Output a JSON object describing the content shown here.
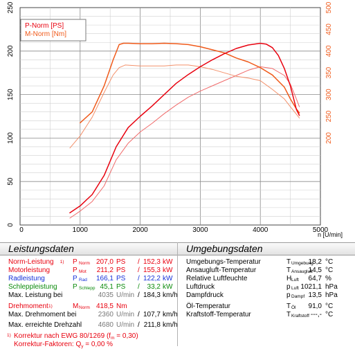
{
  "chart_data": {
    "type": "line",
    "x_axis": {
      "label": "n [U/min]",
      "range": [
        0,
        5000
      ],
      "ticks": [
        0,
        1000,
        2000,
        3000,
        4000,
        5000
      ]
    },
    "y_left": {
      "range": [
        0,
        250
      ],
      "ticks": [
        0,
        50,
        100,
        150,
        200,
        250
      ]
    },
    "y_right": {
      "range": [
        0,
        500
      ],
      "ticks": [
        200,
        250,
        300,
        350,
        400,
        450,
        500
      ]
    },
    "grid": true,
    "legend": {
      "position": "top-left",
      "entries": [
        "P-Norm [PS]",
        "M-Norm [Nm]"
      ]
    },
    "colors": {
      "power": "#e8000e",
      "torque": "#f05a1a",
      "power_light": "#f06a6a",
      "torque_light": "#f3906a"
    },
    "series": [
      {
        "name": "P-Norm [PS]",
        "axis": "left",
        "x": [
          830,
          1000,
          1200,
          1400,
          1600,
          1800,
          2000,
          2200,
          2400,
          2600,
          2800,
          3000,
          3200,
          3400,
          3600,
          3800,
          4000,
          4100,
          4200,
          4300,
          4400,
          4500,
          4600,
          4650
        ],
        "y": [
          14,
          22,
          35,
          57,
          90,
          112,
          125,
          137,
          150,
          163,
          173,
          182,
          190,
          197,
          203,
          207,
          209,
          208,
          204,
          195,
          180,
          160,
          133,
          126
        ]
      },
      {
        "name": "M-Norm [Nm]",
        "axis": "right",
        "x": [
          1000,
          1200,
          1400,
          1550,
          1650,
          1720,
          1800,
          2000,
          2200,
          2400,
          2600,
          2800,
          3000,
          3200,
          3400,
          3600,
          3800,
          4000,
          4200,
          4400,
          4500,
          4600,
          4650
        ],
        "y": [
          235,
          260,
          320,
          380,
          415,
          418,
          418,
          417,
          417,
          418,
          417,
          415,
          410,
          403,
          396,
          384,
          375,
          362,
          345,
          317,
          290,
          267,
          258
        ]
      },
      {
        "axis": "left",
        "x": [
          830,
          1000,
          1200,
          1400,
          1600,
          1800,
          2000,
          2200,
          2400,
          2600,
          2800,
          3000,
          3200,
          3400,
          3600,
          3800,
          4000,
          4200,
          4400,
          4500,
          4600,
          4650
        ],
        "y": [
          8,
          16,
          27,
          45,
          75,
          94,
          107,
          117,
          128,
          138,
          147,
          154,
          160,
          166,
          172,
          178,
          182,
          180,
          172,
          162,
          145,
          136
        ]
      },
      {
        "axis": "right",
        "x": [
          830,
          1000,
          1200,
          1400,
          1550,
          1650,
          1750,
          2000,
          2200,
          2400,
          2600,
          2800,
          3000,
          3200,
          3400,
          3600,
          3800,
          4000,
          4200,
          4400,
          4500,
          4600,
          4650
        ],
        "y": [
          177,
          205,
          248,
          305,
          345,
          362,
          368,
          366,
          366,
          366,
          368,
          368,
          364,
          358,
          350,
          342,
          338,
          332,
          312,
          290,
          272,
          255,
          246
        ]
      }
    ]
  },
  "left_panel": {
    "title": "Leistungsdaten",
    "rows": [
      {
        "label": "Norm-Leistung",
        "marker": "1)",
        "sym": "P",
        "sub": "Norm",
        "v1": "207,0",
        "u1": "PS",
        "slash": "/",
        "v2": "152,3",
        "u2": "kW",
        "color": "red"
      },
      {
        "label": "Motorleistung",
        "sym": "P",
        "sub": "Mot",
        "v1": "211,2",
        "u1": "PS",
        "slash": "/",
        "v2": "155,3",
        "u2": "kW",
        "color": "red"
      },
      {
        "label": "Radleistung",
        "sym": "P",
        "sub": "Rad",
        "v1": "166,1",
        "u1": "PS",
        "slash": "/",
        "v2": "122,2",
        "u2": "kW",
        "color": "blue"
      },
      {
        "label": "Schleppleistung",
        "sym": "P",
        "sub": "Schlepp",
        "v1": "45,1",
        "u1": "PS",
        "slash": "/",
        "v2": "33,2",
        "u2": "kW",
        "color": "green"
      },
      {
        "label": "Max. Leistung bei",
        "v1": "4035",
        "u1": "U/min",
        "slash": "/",
        "v2": "184,3",
        "u2": "km/h",
        "color": "black"
      },
      {
        "label": "Drehmoment",
        "marker": "1)",
        "sym": "M",
        "sub": "Norm",
        "v1": "418,5",
        "u1": "Nm",
        "color": "red"
      },
      {
        "label": "Max. Drehmoment bei",
        "v1": "2360",
        "u1": "U/min",
        "slash": "/",
        "v2": "107,7",
        "u2": "km/h",
        "color": "black"
      },
      {
        "label": "Max. erreichte Drehzahl",
        "v1": "4680",
        "u1": "U/min",
        "slash": "/",
        "v2": "211,8",
        "u2": "km/h",
        "color": "black"
      }
    ],
    "footnote": {
      "marker": "1)",
      "line1_a": "Korrektur nach EWG 80/1269 (f",
      "line1_sub": "m",
      "line1_b": " = 0,30)",
      "line2_a": "Korrektur-Faktoren: Q",
      "line2_sub": "y",
      "line2_b": " =  0,00 %"
    }
  },
  "right_panel": {
    "title": "Umgebungsdaten",
    "rows": [
      {
        "label": "Umgebungs-Temperatur",
        "sym": "T",
        "sub": "Umgebung",
        "value": "18,2",
        "unit": "°C"
      },
      {
        "label": "Ansaugluft-Temperatur",
        "sym": "T",
        "sub": "Ansaugluft",
        "value": "14,5",
        "unit": "°C"
      },
      {
        "label": "Relative Luftfeuchte",
        "sym": "H",
        "sub": "Luft",
        "value": "64,7",
        "unit": "%"
      },
      {
        "label": "Luftdruck",
        "sym": "p",
        "sub": "Luft",
        "value": "1021,1",
        "unit": "hPa"
      },
      {
        "label": "Dampfdruck",
        "sym": "p",
        "sub": "Dampf",
        "value": "13,5",
        "unit": "hPa"
      },
      {
        "label": "Öl-Temperatur",
        "sym": "T",
        "sub": "Öl",
        "value": "91,0",
        "unit": "°C"
      },
      {
        "label": "Kraftstoff-Temperatur",
        "sym": "T",
        "sub": "Kraftstoff",
        "value": "---,-",
        "unit": "°C"
      }
    ]
  }
}
